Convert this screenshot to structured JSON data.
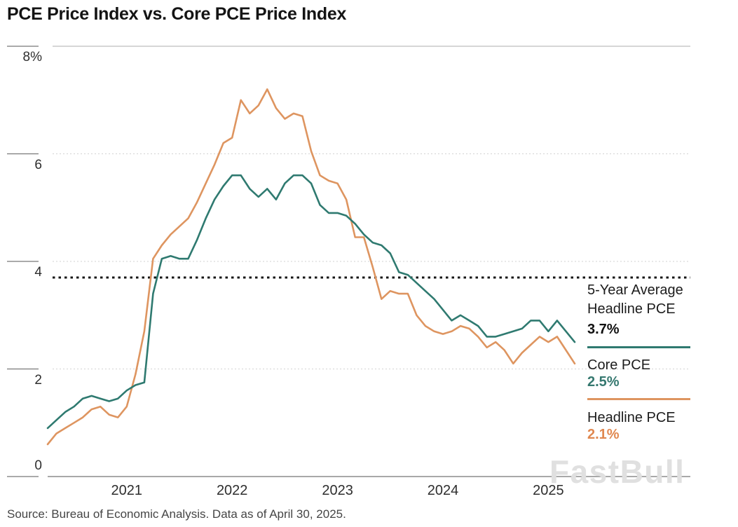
{
  "title": "PCE Price Index vs. Core PCE Price Index",
  "source": "Source: Bureau of Economic Analysis. Data as of April 30, 2025.",
  "watermark": "FastBull",
  "colors": {
    "core": "#2F7A70",
    "headline": "#DE9560",
    "avg_line": "#141414",
    "core_value_text": "#35786F",
    "headline_value_text": "#E08850",
    "grid_solid": "#ADADAD",
    "grid_dashed": "#D2D2D2",
    "axis": "#8C8C8C",
    "tick": "#787878"
  },
  "legend": {
    "avg_label_line1": "5-Year Average",
    "avg_label_line2": "Headline PCE",
    "avg_value": "3.7%",
    "core_label": "Core PCE",
    "core_value": "2.5%",
    "headline_label": "Headline PCE",
    "headline_value": "2.1%"
  },
  "chart_data": {
    "type": "line",
    "title": "PCE Price Index vs. Core PCE Price Index",
    "x_start": "2020-04",
    "x_end": "2025-04",
    "frequency": "monthly",
    "x_tick_labels": [
      "2021",
      "2022",
      "2023",
      "2024",
      "2025"
    ],
    "y_ticks": [
      {
        "value": 8,
        "label": "8%"
      },
      {
        "value": 6,
        "label": "6"
      },
      {
        "value": 4,
        "label": "4"
      },
      {
        "value": 2,
        "label": "2"
      },
      {
        "value": 0,
        "label": "0"
      }
    ],
    "ylim": [
      0,
      8
    ],
    "grid": "horizontal-dashed",
    "legend_position": "right",
    "avg_line": {
      "label": "5-Year Average Headline PCE",
      "value": 3.7,
      "style": "dotted-black"
    },
    "series": [
      {
        "name": "Core PCE",
        "color": "#2F7A70",
        "last_value_label": "2.5%",
        "values": [
          0.9,
          1.05,
          1.2,
          1.3,
          1.45,
          1.5,
          1.45,
          1.4,
          1.45,
          1.6,
          1.7,
          1.75,
          3.4,
          4.05,
          4.1,
          4.05,
          4.05,
          4.4,
          4.8,
          5.15,
          5.4,
          5.6,
          5.6,
          5.35,
          5.2,
          5.35,
          5.15,
          5.45,
          5.6,
          5.6,
          5.45,
          5.05,
          4.9,
          4.9,
          4.85,
          4.7,
          4.5,
          4.35,
          4.3,
          4.15,
          3.8,
          3.75,
          3.6,
          3.45,
          3.3,
          3.1,
          2.9,
          3.0,
          2.9,
          2.8,
          2.6,
          2.6,
          2.65,
          2.7,
          2.75,
          2.9,
          2.9,
          2.7,
          2.9,
          2.7,
          2.5
        ]
      },
      {
        "name": "Headline PCE",
        "color": "#DE9560",
        "last_value_label": "2.1%",
        "values": [
          0.6,
          0.8,
          0.9,
          1.0,
          1.1,
          1.25,
          1.3,
          1.15,
          1.1,
          1.3,
          1.9,
          2.7,
          4.05,
          4.3,
          4.5,
          4.65,
          4.8,
          5.1,
          5.45,
          5.8,
          6.2,
          6.3,
          7.0,
          6.75,
          6.9,
          7.2,
          6.85,
          6.65,
          6.75,
          6.7,
          6.05,
          5.6,
          5.5,
          5.45,
          5.15,
          4.45,
          4.45,
          3.9,
          3.3,
          3.45,
          3.4,
          3.4,
          3.0,
          2.8,
          2.7,
          2.65,
          2.7,
          2.8,
          2.75,
          2.6,
          2.4,
          2.5,
          2.35,
          2.1,
          2.3,
          2.45,
          2.6,
          2.5,
          2.6,
          2.35,
          2.1
        ]
      }
    ]
  }
}
